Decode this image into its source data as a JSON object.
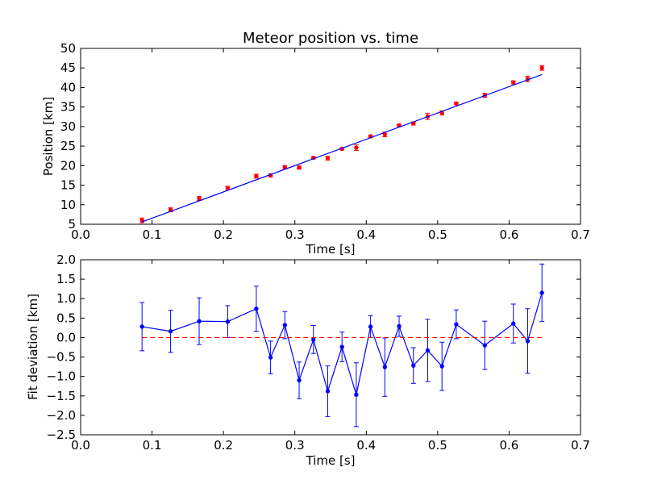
{
  "chart_data": [
    {
      "type": "scatter",
      "title": "Meteor position vs. time",
      "xlabel": "Time [s]",
      "ylabel": "Position [km]",
      "xlim": [
        0.0,
        0.7
      ],
      "ylim": [
        5,
        50
      ],
      "xticks": [
        "0.0",
        "0.1",
        "0.2",
        "0.3",
        "0.4",
        "0.5",
        "0.6",
        "0.7"
      ],
      "yticks": [
        "5",
        "10",
        "15",
        "20",
        "25",
        "30",
        "35",
        "40",
        "45",
        "50"
      ],
      "grid": false,
      "series": [
        {
          "kind": "points-with-error",
          "color": "#ff0000",
          "x": [
            0.086,
            0.126,
            0.166,
            0.206,
            0.246,
            0.266,
            0.286,
            0.306,
            0.326,
            0.346,
            0.366,
            0.386,
            0.406,
            0.426,
            0.446,
            0.466,
            0.486,
            0.506,
            0.526,
            0.566,
            0.606,
            0.626,
            0.646
          ],
          "y": [
            6.0,
            8.7,
            11.6,
            14.3,
            17.3,
            17.5,
            19.6,
            19.5,
            22.0,
            21.9,
            24.3,
            24.6,
            27.5,
            28.0,
            30.3,
            30.8,
            32.6,
            33.5,
            35.9,
            38.0,
            41.3,
            42.2,
            45.0
          ],
          "yerr": [
            0.6,
            0.5,
            0.5,
            0.4,
            0.5,
            0.4,
            0.4,
            0.4,
            0.3,
            0.5,
            0.3,
            0.7,
            0.3,
            0.6,
            0.3,
            0.4,
            0.8,
            0.5,
            0.3,
            0.5,
            0.4,
            0.7,
            0.6
          ]
        },
        {
          "kind": "fit-line",
          "color": "#0000ff",
          "x": [
            0.086,
            0.646
          ],
          "y": [
            5.6,
            43.3
          ]
        }
      ]
    },
    {
      "type": "line",
      "xlabel": "Time [s]",
      "ylabel": "Fit deviation [km]",
      "xlim": [
        0.0,
        0.7
      ],
      "ylim": [
        -2.5,
        2.0
      ],
      "xticks": [
        "0.0",
        "0.1",
        "0.2",
        "0.3",
        "0.4",
        "0.5",
        "0.6",
        "0.7"
      ],
      "yticks": [
        "−2.5",
        "−2.0",
        "−1.5",
        "−1.0",
        "−0.5",
        "0.0",
        "0.5",
        "1.0",
        "1.5",
        "2.0"
      ],
      "grid": false,
      "series": [
        {
          "kind": "line-with-error",
          "color": "#0000ff",
          "x": [
            0.086,
            0.126,
            0.166,
            0.206,
            0.246,
            0.266,
            0.286,
            0.306,
            0.326,
            0.346,
            0.366,
            0.386,
            0.406,
            0.426,
            0.446,
            0.466,
            0.486,
            0.506,
            0.526,
            0.566,
            0.606,
            0.626,
            0.646
          ],
          "y": [
            0.28,
            0.16,
            0.42,
            0.41,
            0.74,
            -0.51,
            0.32,
            -1.1,
            -0.05,
            -1.38,
            -0.24,
            -1.47,
            0.28,
            -0.76,
            0.29,
            -0.72,
            -0.33,
            -0.74,
            0.34,
            -0.2,
            0.36,
            -0.09,
            1.15
          ],
          "yerr": [
            0.62,
            0.54,
            0.6,
            0.41,
            0.58,
            0.42,
            0.35,
            0.47,
            0.36,
            0.65,
            0.38,
            0.82,
            0.28,
            0.75,
            0.26,
            0.46,
            0.8,
            0.62,
            0.37,
            0.62,
            0.5,
            0.83,
            0.74
          ]
        },
        {
          "kind": "dashed-line",
          "color": "#ff0000",
          "x": [
            0.086,
            0.646
          ],
          "y": [
            0.0,
            0.0
          ]
        }
      ]
    }
  ]
}
